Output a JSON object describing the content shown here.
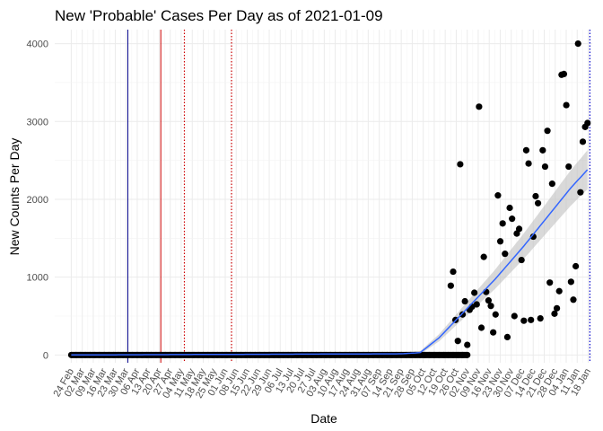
{
  "chart_data": {
    "type": "scatter",
    "title": "New 'Probable' Cases Per Day as of 2021-01-09",
    "xlabel": "Date",
    "ylabel": "New Counts Per Day",
    "x_range_days": [
      -3.5,
      110.5
    ],
    "ylim": [
      -100,
      4180
    ],
    "y_ticks": [
      0,
      1000,
      2000,
      3000,
      4000
    ],
    "x_tick_labels": [
      "24 Feb",
      "02 Mar",
      "09 Mar",
      "16 Mar",
      "23 Mar",
      "30 Mar",
      "06 Apr",
      "13 Apr",
      "20 Apr",
      "27 Apr",
      "04 May",
      "11 May",
      "18 May",
      "25 May",
      "01 Jun",
      "08 Jun",
      "15 Jun",
      "22 Jun",
      "29 Jun",
      "06 Jul",
      "13 Jul",
      "20 Jul",
      "27 Jul",
      "03 Aug",
      "10 Aug",
      "17 Aug",
      "24 Aug",
      "31 Aug",
      "07 Sep",
      "14 Sep",
      "21 Sep",
      "28 Sep",
      "05 Oct",
      "12 Oct",
      "19 Oct",
      "26 Oct",
      "02 Nov",
      "09 Nov",
      "16 Nov",
      "23 Nov",
      "30 Nov",
      "07 Dec",
      "14 Dec",
      "21 Dec",
      "28 Dec",
      "04 Jan",
      "11 Jan",
      "18 Jan"
    ],
    "vlines": [
      {
        "day": 12,
        "color": "#00008b",
        "style": "solid"
      },
      {
        "day": 19,
        "color": "#cc0000",
        "style": "solid"
      },
      {
        "day": 24,
        "color": "#cc0000",
        "style": "dotted"
      },
      {
        "day": 34,
        "color": "#cc0000",
        "style": "dotted"
      },
      {
        "day": 110,
        "color": "#0000cc",
        "style": "dotted"
      }
    ],
    "series": [
      {
        "name": "zero-count days",
        "day_range": [
          0,
          84
        ],
        "value": 0
      },
      {
        "name": "reported days",
        "points": [
          [
            80.5,
            890
          ],
          [
            81,
            1070
          ],
          [
            81.5,
            450
          ],
          [
            82,
            180
          ],
          [
            82.5,
            2450
          ],
          [
            83,
            520
          ],
          [
            83.5,
            690
          ],
          [
            84,
            130
          ],
          [
            84.5,
            580
          ],
          [
            85,
            620
          ],
          [
            85.5,
            800
          ],
          [
            86,
            650
          ],
          [
            86.5,
            3190
          ],
          [
            87,
            350
          ],
          [
            87.5,
            1260
          ],
          [
            88,
            810
          ],
          [
            88.5,
            700
          ],
          [
            89,
            630
          ],
          [
            89.5,
            290
          ],
          [
            90,
            520
          ],
          [
            90.5,
            2050
          ],
          [
            91,
            1460
          ],
          [
            91.5,
            1690
          ],
          [
            92,
            1300
          ],
          [
            92.5,
            230
          ],
          [
            93,
            1890
          ],
          [
            93.5,
            1750
          ],
          [
            94,
            500
          ],
          [
            94.5,
            1560
          ],
          [
            95,
            1620
          ],
          [
            95.5,
            1220
          ],
          [
            96,
            440
          ],
          [
            96.5,
            2630
          ],
          [
            97,
            2460
          ],
          [
            97.5,
            450
          ],
          [
            98,
            1520
          ],
          [
            98.5,
            2040
          ],
          [
            99,
            1950
          ],
          [
            99.5,
            470
          ],
          [
            100,
            2630
          ],
          [
            100.5,
            2420
          ],
          [
            101,
            2880
          ],
          [
            101.5,
            930
          ],
          [
            102,
            2200
          ],
          [
            102.5,
            530
          ],
          [
            103,
            600
          ],
          [
            103.5,
            820
          ],
          [
            104,
            3600
          ],
          [
            104.5,
            3610
          ],
          [
            105,
            3210
          ],
          [
            105.5,
            2420
          ],
          [
            106,
            940
          ],
          [
            106.5,
            710
          ],
          [
            107,
            1140
          ],
          [
            107.5,
            4000
          ],
          [
            108,
            2090
          ],
          [
            108.5,
            2740
          ],
          [
            109,
            2930
          ],
          [
            109.5,
            2980
          ]
        ]
      }
    ],
    "smooth_fit": [
      [
        0,
        0
      ],
      [
        70,
        15
      ],
      [
        74,
        30
      ],
      [
        78,
        220
      ],
      [
        84,
        600
      ],
      [
        90,
        980
      ],
      [
        96,
        1400
      ],
      [
        102,
        1850
      ],
      [
        106,
        2150
      ],
      [
        109.5,
        2380
      ]
    ]
  }
}
